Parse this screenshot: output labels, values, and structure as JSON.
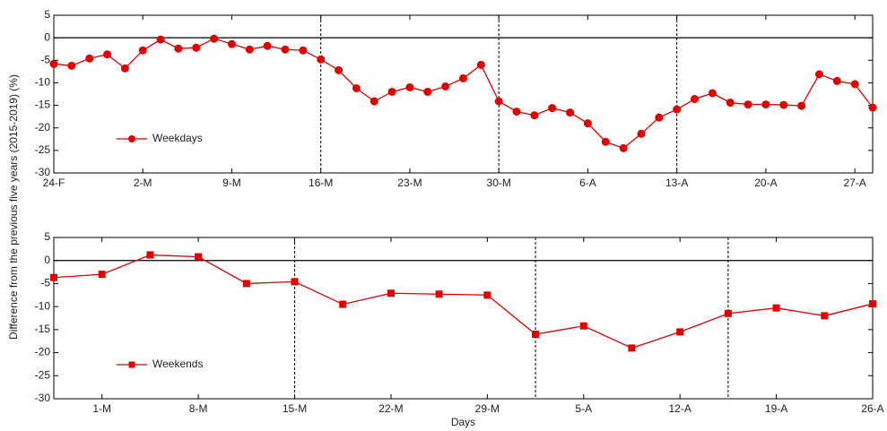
{
  "chart_data": [
    {
      "type": "line",
      "ylabel": "Difference from the previous five years (2015-2019) (%)",
      "xlim": [
        0,
        46
      ],
      "xticks": [
        {
          "value": 0,
          "label": "24-F"
        },
        {
          "value": 5,
          "label": "2-M"
        },
        {
          "value": 10,
          "label": "9-M"
        },
        {
          "value": 15,
          "label": "16-M"
        },
        {
          "value": 20,
          "label": "23-M"
        },
        {
          "value": 25,
          "label": "30-M"
        },
        {
          "value": 30,
          "label": "6-A"
        },
        {
          "value": 35,
          "label": "13-A"
        },
        {
          "value": 40,
          "label": "20-A"
        },
        {
          "value": 45,
          "label": "27-A"
        }
      ],
      "ylim": [
        -30,
        5
      ],
      "yticks": [
        5,
        0,
        -5,
        -10,
        -15,
        -20,
        -25,
        -30
      ],
      "hlines": [
        0
      ],
      "vlines": [
        15,
        25,
        35
      ],
      "legend": "lower left",
      "series": [
        {
          "name": "Weekdays",
          "color": "#e00000",
          "marker": "circle",
          "x": [
            0,
            1,
            2,
            3,
            4,
            5,
            6,
            7,
            8,
            9,
            10,
            11,
            12,
            13,
            14,
            15,
            16,
            17,
            18,
            19,
            20,
            21,
            22,
            23,
            24,
            25,
            26,
            27,
            28,
            29,
            30,
            31,
            32,
            33,
            34,
            35,
            36,
            37,
            38,
            39,
            40,
            41,
            42,
            43,
            44,
            45,
            46
          ],
          "values": [
            -5.8,
            -6.2,
            -4.6,
            -3.7,
            -6.8,
            -2.8,
            -0.4,
            -2.4,
            -2.2,
            -0.2,
            -1.4,
            -2.6,
            -1.8,
            -2.6,
            -2.8,
            -4.8,
            -7.2,
            -11.2,
            -14.1,
            -12,
            -11,
            -12,
            -10.8,
            -9,
            -6,
            -14.1,
            -16.4,
            -17.2,
            -15.6,
            -16.6,
            -19,
            -23.1,
            -24.5,
            -21.3,
            -17.7,
            -15.9,
            -13.6,
            -12.3,
            -14.4,
            -14.8,
            -14.8,
            -14.9,
            -15.1,
            -8.1,
            -9.6,
            -10.3,
            -15.5
          ]
        }
      ]
    },
    {
      "type": "line",
      "xlabel": "Days",
      "xlim": [
        0,
        17
      ],
      "xticks": [
        {
          "value": 1,
          "label": "1-M"
        },
        {
          "value": 3,
          "label": "8-M"
        },
        {
          "value": 5,
          "label": "15-M"
        },
        {
          "value": 7,
          "label": "22-M"
        },
        {
          "value": 9,
          "label": "29-M"
        },
        {
          "value": 11,
          "label": "5-A"
        },
        {
          "value": 13,
          "label": "12-A"
        },
        {
          "value": 15,
          "label": "19-A"
        },
        {
          "value": 17,
          "label": "26-A"
        }
      ],
      "ylim": [
        -30,
        5
      ],
      "yticks": [
        5,
        0,
        -5,
        -10,
        -15,
        -20,
        -25,
        -30
      ],
      "hlines": [
        0
      ],
      "vlines": [
        5,
        10,
        14
      ],
      "legend": "lower left",
      "series": [
        {
          "name": "Weekends",
          "color": "#e00000",
          "marker": "square",
          "x": [
            0,
            1,
            2,
            3,
            4,
            5,
            6,
            7,
            8,
            9,
            10,
            11,
            12,
            13,
            14,
            15,
            16,
            17
          ],
          "values": [
            -3.7,
            -3,
            1.2,
            0.8,
            -5,
            -4.6,
            -9.5,
            -7.1,
            -7.3,
            -7.5,
            -16,
            -14.2,
            -19,
            -15.5,
            -11.5,
            -10.3,
            -12,
            -9.4
          ]
        }
      ]
    }
  ]
}
